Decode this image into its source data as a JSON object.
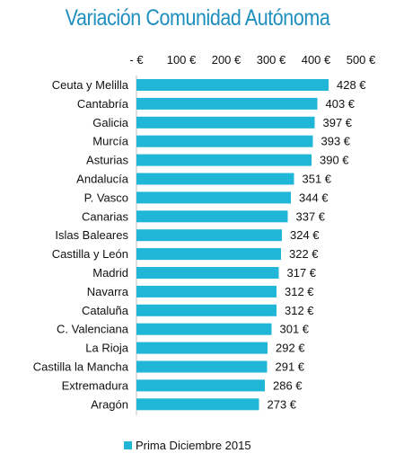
{
  "chart_data": {
    "type": "bar",
    "orientation": "horizontal",
    "title": "Variación Comunidad Autónoma",
    "xlabel": "",
    "ylabel": "",
    "xlim": [
      0,
      500
    ],
    "ticks": [
      "- €",
      "100 €",
      "200 €",
      "300 €",
      "400 €",
      "500 €"
    ],
    "tick_values": [
      0,
      100,
      200,
      300,
      400,
      500
    ],
    "tick_position": "top",
    "grid": false,
    "legend_position": "bottom",
    "categories": [
      "Ceuta y Melilla",
      "Cantabría",
      "Galicia",
      "Murcía",
      "Asturias",
      "Andalucía",
      "P. Vasco",
      "Canarias",
      "Islas Baleares",
      "Castilla y León",
      "Madrid",
      "Navarra",
      "Cataluña",
      "C. Valenciana",
      "La Rioja",
      "Castilla la Mancha",
      "Extremadura",
      "Aragón"
    ],
    "series": [
      {
        "name": "Prima Diciembre 2015",
        "color": "#1fb6d8",
        "values": [
          428,
          403,
          397,
          393,
          390,
          351,
          344,
          337,
          324,
          322,
          317,
          312,
          312,
          301,
          292,
          291,
          286,
          273
        ],
        "labels": [
          "428 €",
          "403 €",
          "397 €",
          "393 €",
          "390 €",
          "351 €",
          "344 €",
          "337 €",
          "324 €",
          "322 €",
          "317 €",
          "312 €",
          "312 €",
          "301 €",
          "292 €",
          "291 €",
          "286 €",
          "273 €"
        ]
      }
    ]
  }
}
